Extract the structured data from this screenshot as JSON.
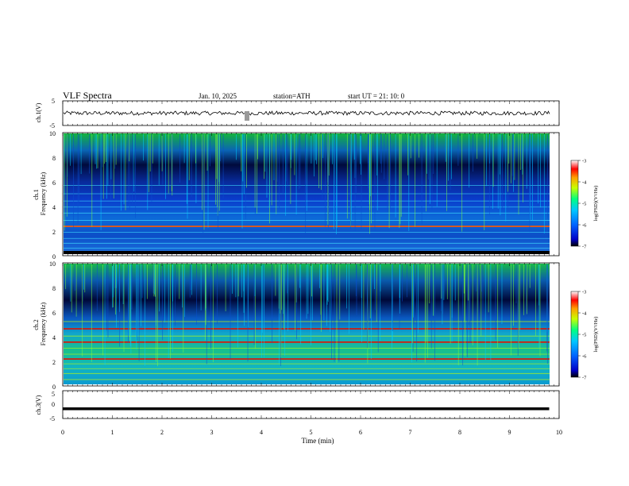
{
  "header": {
    "title": "VLF  Spectra",
    "date": "Jan. 10, 2025",
    "station": "station=ATH",
    "start": "start  UT  =  21: 10: 0"
  },
  "chart_data": [
    {
      "type": "line",
      "panel": "ch1-waveform",
      "ylabel": "ch.1(V)",
      "ylim": [
        -5,
        5
      ],
      "yticks": [
        "5",
        "-5"
      ],
      "series_color": "#000000",
      "baseline_v": 0.0,
      "amplitude_v": 0.8
    },
    {
      "type": "heatmap",
      "panel": "ch1-spectrogram",
      "ylabel": "ch.1\nFrequency  (kHz)",
      "ylim": [
        0,
        10
      ],
      "yticks": [
        "0",
        "2",
        "4",
        "6",
        "8",
        "10"
      ],
      "colorbar": {
        "label": "log(PSD)(V²/Hz)",
        "ticks": [
          "-3",
          "-4",
          "-5",
          "-6",
          "-7"
        ],
        "range": [
          -7,
          -3
        ],
        "colors": [
          "#000000",
          "#0000c8",
          "#0064ff",
          "#00c8ff",
          "#00ff80",
          "#c8ff00",
          "#ffa000",
          "#ff0000",
          "#ffffff"
        ]
      },
      "lines_khz": [
        0.2,
        0.5,
        0.9,
        1.3,
        1.8,
        2.3,
        2.8,
        3.4,
        3.9,
        4.4,
        5.0,
        5.7
      ],
      "strong_lines_khz": [
        2.3
      ]
    },
    {
      "type": "heatmap",
      "panel": "ch2-spectrogram",
      "ylabel": "ch.2\nFrequency  (kHz)",
      "ylim": [
        0,
        10
      ],
      "yticks": [
        "0",
        "2",
        "4",
        "6",
        "8",
        "10"
      ],
      "colorbar": {
        "label": "log(PSD)(V²/Hz)",
        "ticks": [
          "-3",
          "-4",
          "-5",
          "-6",
          "-7"
        ],
        "range": [
          -7,
          -3
        ]
      },
      "lines_khz": [
        0.4,
        0.9,
        1.3,
        1.7,
        2.1,
        2.5,
        3.0,
        3.5,
        4.0,
        4.6,
        5.2
      ],
      "strong_lines_khz": [
        2.1,
        3.5,
        4.6
      ]
    },
    {
      "type": "line",
      "panel": "ch3-waveform",
      "ylabel": "ch.3(V)",
      "ylim": [
        -5,
        5
      ],
      "yticks": [
        "5",
        "0",
        "-5"
      ],
      "x": [
        0,
        9.8
      ],
      "y": [
        -1.5,
        -1.5
      ]
    }
  ],
  "xaxis": {
    "label": "Time  (min)",
    "xlim": [
      0,
      10
    ],
    "ticks": [
      "0",
      "1",
      "2",
      "3",
      "4",
      "5",
      "6",
      "7",
      "8",
      "9",
      "10"
    ]
  }
}
